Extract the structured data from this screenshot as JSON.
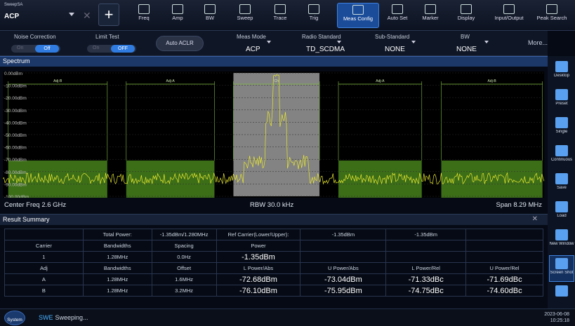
{
  "app": {
    "name": "SweepSA",
    "mode": "ACP"
  },
  "toolbar": [
    {
      "label": "Freq",
      "icon": "freq-icon"
    },
    {
      "label": "Amp",
      "icon": "amp-icon"
    },
    {
      "label": "BW",
      "icon": "bw-icon"
    },
    {
      "label": "Sweep",
      "icon": "sweep-icon"
    },
    {
      "label": "Trace",
      "icon": "trace-icon"
    },
    {
      "label": "Trig",
      "icon": "trig-icon"
    },
    {
      "label": "Meas Config",
      "icon": "meas-config-icon",
      "active": true
    },
    {
      "label": "Auto Set",
      "icon": "auto-set-icon"
    },
    {
      "label": "Marker",
      "icon": "marker-icon"
    },
    {
      "label": "Display",
      "icon": "display-icon"
    },
    {
      "label": "Input/Output",
      "icon": "input-output-icon"
    },
    {
      "label": "Peak Search",
      "icon": "peak-search-icon"
    }
  ],
  "controls": {
    "noise_correction": {
      "label": "Noise Correction",
      "on": "On",
      "off": "Off"
    },
    "limit_test": {
      "label": "Limit Test",
      "on": "On",
      "off": "OFF"
    },
    "auto_aclr": "Auto ACLR",
    "meas_mode": {
      "label": "Meas Mode",
      "value": "ACP"
    },
    "radio_standard": {
      "label": "Radio Standard",
      "value": "TD_SCDMA"
    },
    "sub_standard": {
      "label": "Sub-Standard",
      "value": "NONE"
    },
    "bw": {
      "label": "BW",
      "value": "NONE"
    },
    "more": "More..."
  },
  "spectrum": {
    "title": "Spectrum",
    "center_freq": "Center Freq 2.6 GHz",
    "rbw": "RBW 30.0 kHz",
    "span": "Span 8.29 MHz",
    "y_ticks": [
      "0.00dBm",
      "-10.00dBm",
      "-20.00dBm",
      "-30.00dBm",
      "-40.00dBm",
      "-50.00dBm",
      "-60.00dBm",
      "-70.00dBm",
      "-80.00dBm",
      "-90.00dBm",
      "-100.00dBm"
    ],
    "channel_labels": [
      "Adj-B",
      "Adj-A",
      "Ch",
      "Adj-A",
      "Adj-B"
    ],
    "colors": {
      "trace": "#e8e830",
      "adj_fill": "#3c6e18",
      "main_fill": "#9a9a9a"
    }
  },
  "results": {
    "title": "Result Summary",
    "total_power_label": "Total Power:",
    "total_power_value": "-1.35dBm/1.280MHz",
    "ref_carrier_label": "Ref Carrier(Lower/Upper):",
    "ref_lower": "-1.35dBm",
    "ref_upper": "-1.35dBm",
    "carrier_headers": [
      "Carrier",
      "Bandwidths",
      "Spacing",
      "Power"
    ],
    "carrier_row": [
      "1",
      "1.28MHz",
      "0.0Hz",
      "-1.35dBm"
    ],
    "adj_headers": [
      "Adj",
      "Bandwidths",
      "Offset",
      "L Power/Abs",
      "U Power/Abs",
      "L Power/Rel",
      "U Power/Rel"
    ],
    "adj_rows": [
      [
        "A",
        "1.28MHz",
        "1.6MHz",
        "-72.68dBm",
        "-73.04dBm",
        "-71.33dBc",
        "-71.69dBc"
      ],
      [
        "B",
        "1.28MHz",
        "3.2MHz",
        "-76.10dBm",
        "-75.95dBm",
        "-74.75dBc",
        "-74.60dBc"
      ]
    ]
  },
  "sidebar": [
    {
      "label": "Desktop",
      "icon": "desktop-icon"
    },
    {
      "label": "Preset",
      "icon": "preset-icon"
    },
    {
      "label": "Single",
      "icon": "single-icon"
    },
    {
      "label": "Continuous",
      "icon": "continuous-icon"
    },
    {
      "label": "Save",
      "icon": "save-icon"
    },
    {
      "label": "Load",
      "icon": "load-icon"
    },
    {
      "label": "New Window",
      "icon": "new-window-icon"
    },
    {
      "label": "Screen Shot",
      "icon": "screenshot-icon",
      "active": true
    },
    {
      "label": "",
      "icon": "settings-icon"
    }
  ],
  "status": {
    "system": "System",
    "mode_tag": "SWE",
    "text": "Sweeping...",
    "date": "2023-06-08",
    "time": "10:25:18"
  }
}
